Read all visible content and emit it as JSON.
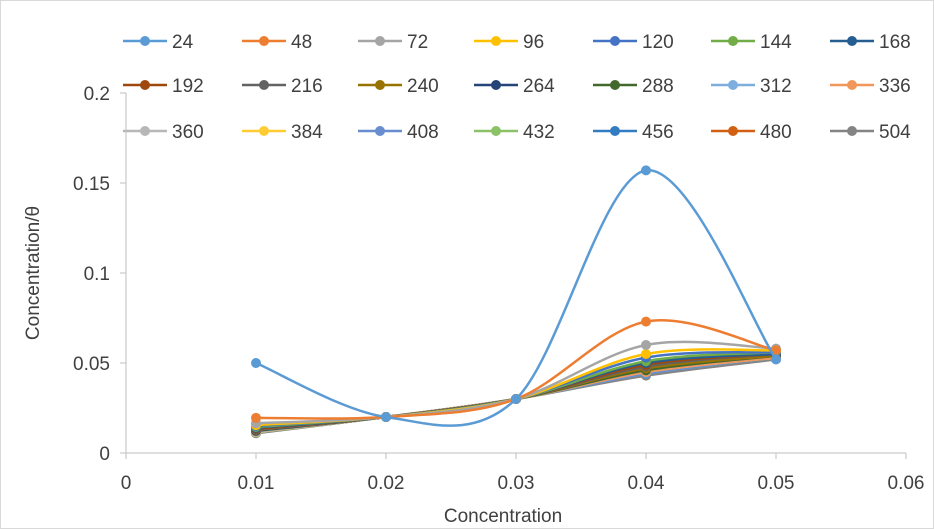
{
  "chart_data": {
    "type": "line",
    "xlabel": "Concentration",
    "ylabel": "Concentration/θ",
    "xlim": [
      0,
      0.06
    ],
    "ylim": [
      0,
      0.2
    ],
    "x_ticks": [
      "0",
      "0.01",
      "0.02",
      "0.03",
      "0.04",
      "0.05",
      "0.06"
    ],
    "y_ticks": [
      "0",
      "0.05",
      "0.1",
      "0.15",
      "0.2"
    ],
    "legend_position": "top",
    "grid": false,
    "x": [
      0.01,
      0.02,
      0.03,
      0.04,
      0.05
    ],
    "series": [
      {
        "name": "24",
        "color": "#5B9BD5",
        "values": [
          0.05,
          0.02,
          0.03,
          0.157,
          0.052
        ]
      },
      {
        "name": "48",
        "color": "#ED7D31",
        "values": [
          0.0195,
          0.02,
          0.03,
          0.073,
          0.057
        ]
      },
      {
        "name": "72",
        "color": "#A5A5A5",
        "values": [
          0.0165,
          0.02,
          0.03,
          0.06,
          0.058
        ]
      },
      {
        "name": "96",
        "color": "#FFC000",
        "values": [
          0.0155,
          0.02,
          0.03,
          0.055,
          0.057
        ]
      },
      {
        "name": "120",
        "color": "#4472C4",
        "values": [
          0.015,
          0.02,
          0.03,
          0.053,
          0.056
        ]
      },
      {
        "name": "144",
        "color": "#70AD47",
        "values": [
          0.0145,
          0.02,
          0.03,
          0.051,
          0.056
        ]
      },
      {
        "name": "168",
        "color": "#255E91",
        "values": [
          0.014,
          0.02,
          0.03,
          0.05,
          0.055
        ]
      },
      {
        "name": "192",
        "color": "#9E480E",
        "values": [
          0.0135,
          0.02,
          0.03,
          0.049,
          0.055
        ]
      },
      {
        "name": "216",
        "color": "#636363",
        "values": [
          0.013,
          0.02,
          0.03,
          0.048,
          0.055
        ]
      },
      {
        "name": "240",
        "color": "#997300",
        "values": [
          0.0128,
          0.02,
          0.03,
          0.047,
          0.054
        ]
      },
      {
        "name": "264",
        "color": "#264478",
        "values": [
          0.0125,
          0.02,
          0.03,
          0.047,
          0.054
        ]
      },
      {
        "name": "288",
        "color": "#43682B",
        "values": [
          0.0123,
          0.02,
          0.03,
          0.046,
          0.054
        ]
      },
      {
        "name": "312",
        "color": "#7CAFDD",
        "values": [
          0.0121,
          0.02,
          0.03,
          0.046,
          0.054
        ]
      },
      {
        "name": "336",
        "color": "#F1975A",
        "values": [
          0.0119,
          0.02,
          0.03,
          0.045,
          0.053
        ]
      },
      {
        "name": "360",
        "color": "#B7B7B7",
        "values": [
          0.0117,
          0.02,
          0.03,
          0.045,
          0.053
        ]
      },
      {
        "name": "384",
        "color": "#FFCD33",
        "values": [
          0.0115,
          0.02,
          0.03,
          0.045,
          0.053
        ]
      },
      {
        "name": "408",
        "color": "#698ED0",
        "values": [
          0.0114,
          0.02,
          0.03,
          0.044,
          0.053
        ]
      },
      {
        "name": "432",
        "color": "#8CC168",
        "values": [
          0.0113,
          0.02,
          0.03,
          0.044,
          0.053
        ]
      },
      {
        "name": "456",
        "color": "#327DC2",
        "values": [
          0.0112,
          0.02,
          0.03,
          0.044,
          0.053
        ]
      },
      {
        "name": "480",
        "color": "#D26012",
        "values": [
          0.0111,
          0.02,
          0.03,
          0.044,
          0.053
        ]
      },
      {
        "name": "504",
        "color": "#848484",
        "values": [
          0.011,
          0.02,
          0.03,
          0.043,
          0.052
        ]
      }
    ]
  }
}
